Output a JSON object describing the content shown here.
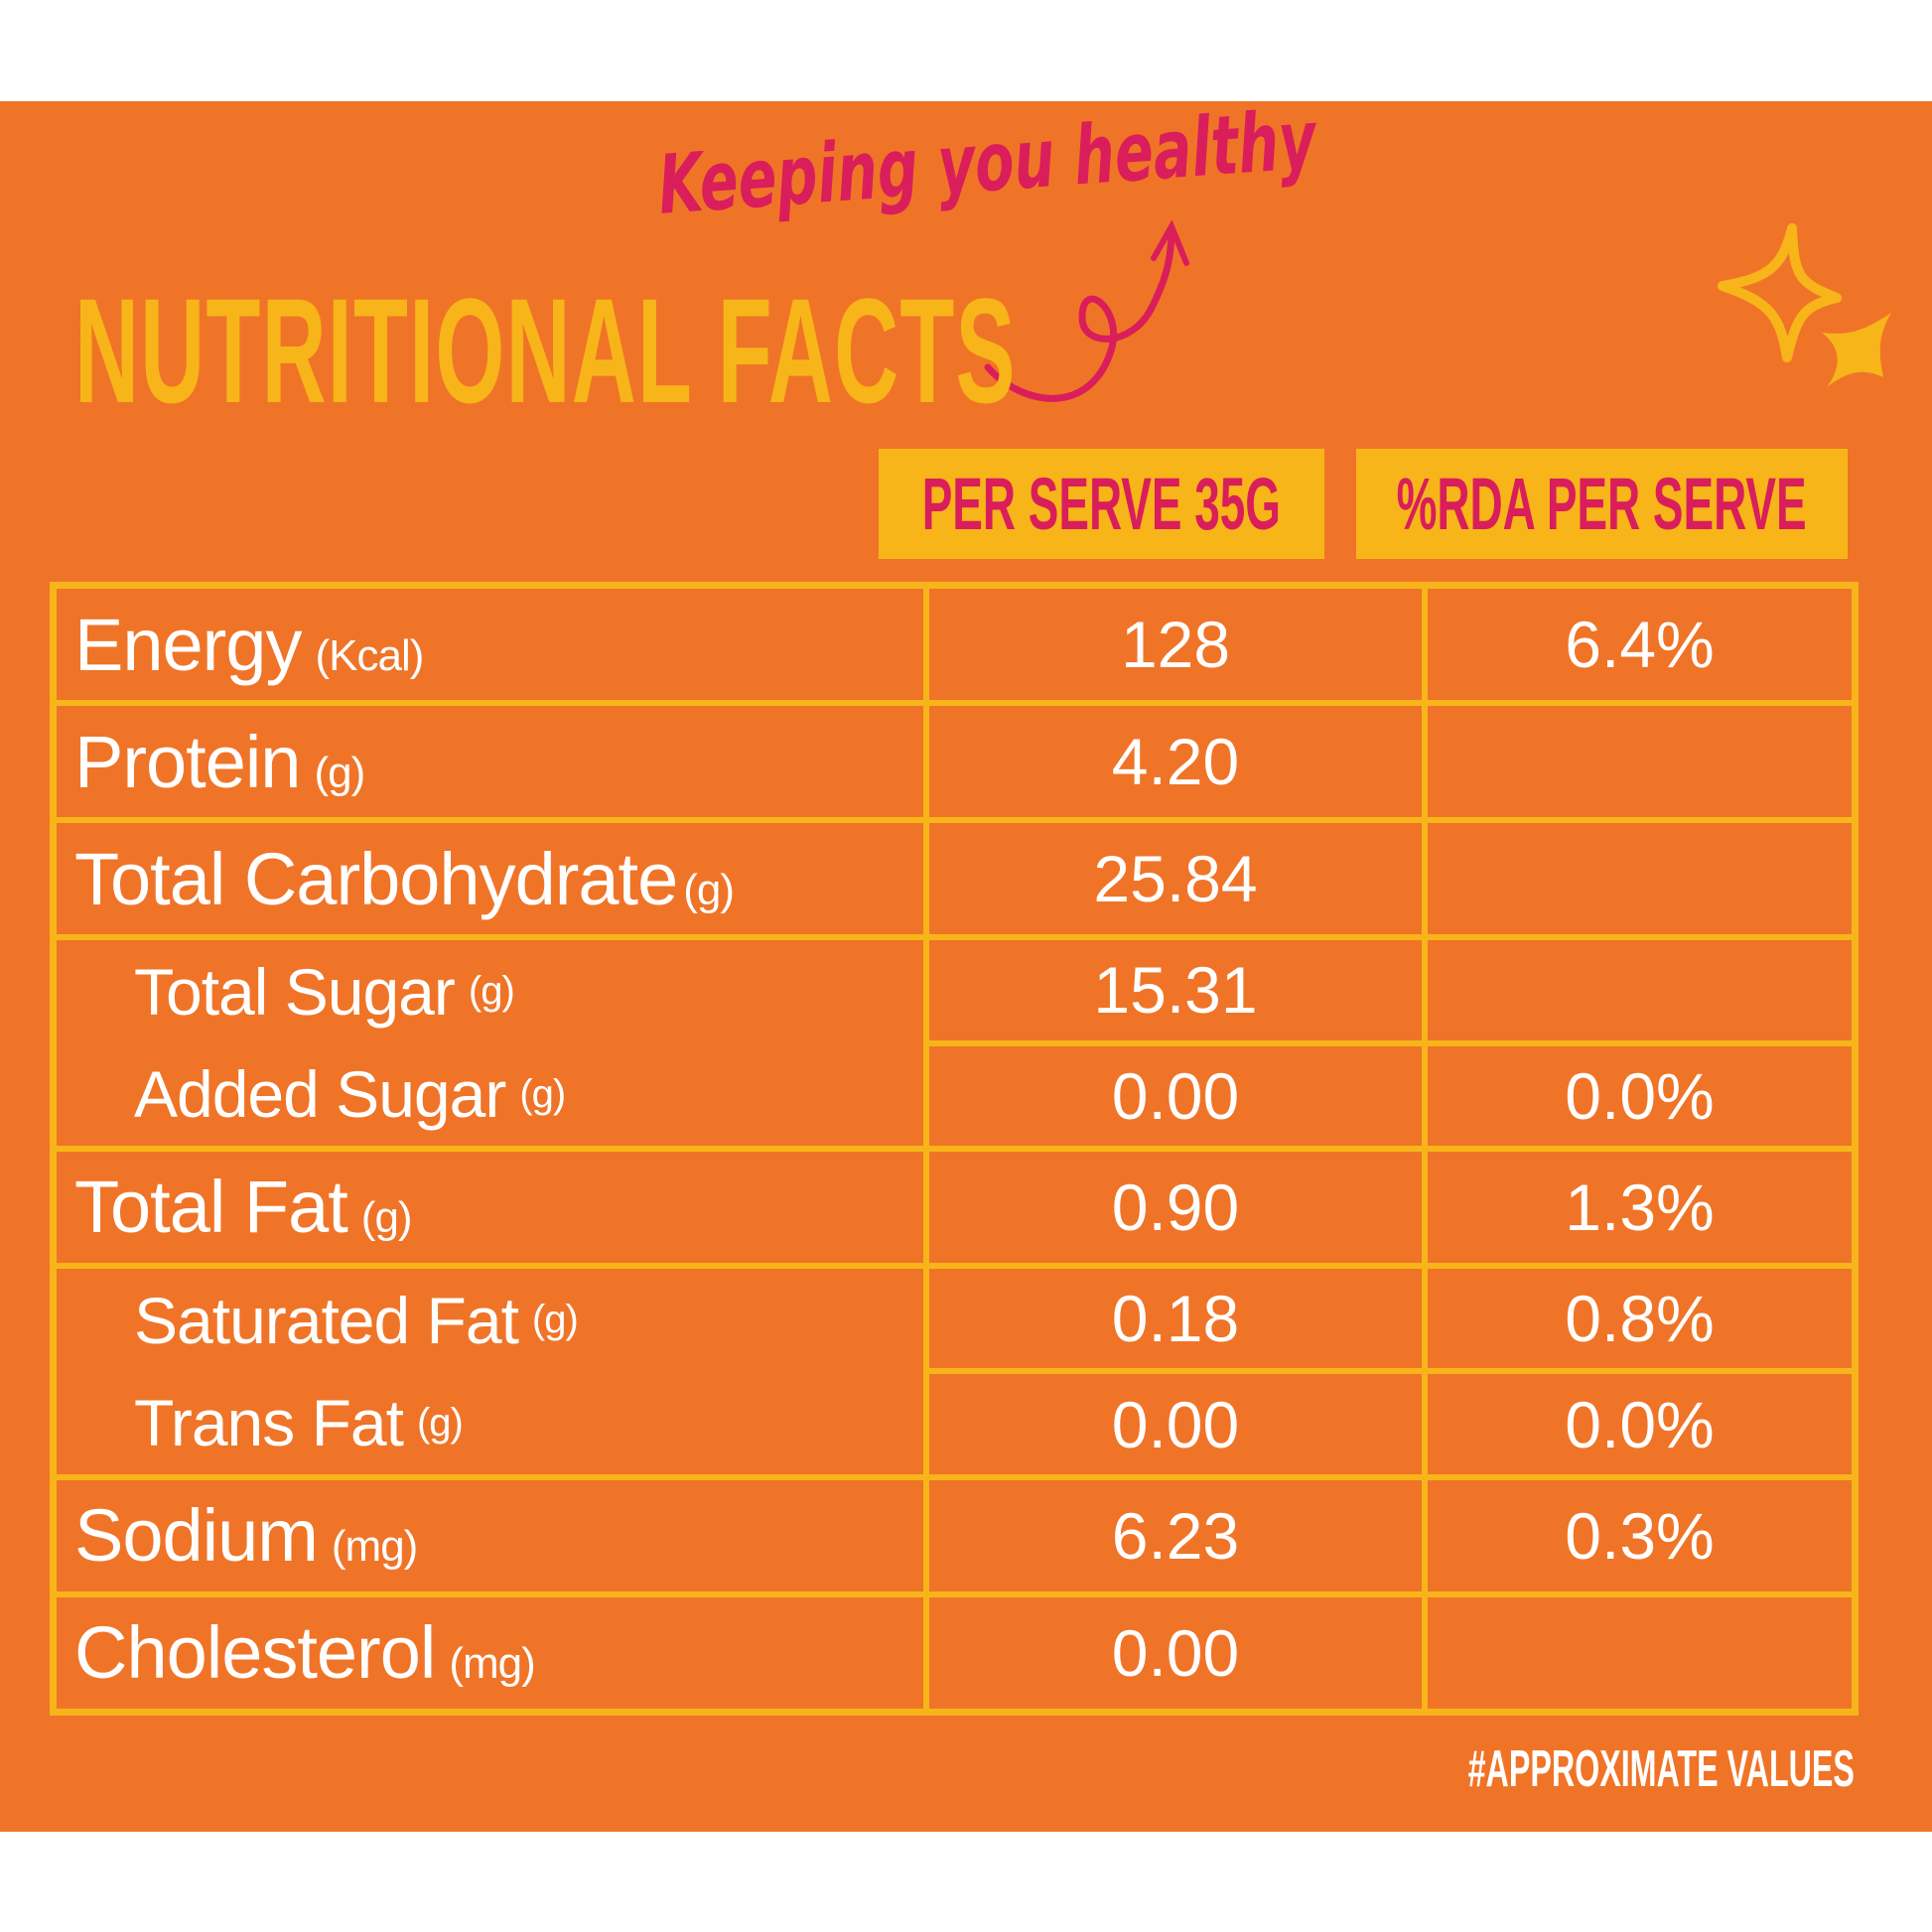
{
  "header": {
    "title": "NUTRITIONAL FACTS",
    "tagline": "Keeping you healthy",
    "columns": [
      "PER SERVE 35G",
      "%RDA PER SERVE"
    ]
  },
  "rows": [
    {
      "label": "Energy",
      "unit": "(Kcal)",
      "per_serve": "128",
      "rda": "6.4%"
    },
    {
      "label": "Protein",
      "unit": "(g)",
      "per_serve": "4.20",
      "rda": ""
    },
    {
      "label": "Total Carbohydrate",
      "unit": "(g)",
      "per_serve": "25.84",
      "rda": ""
    },
    {
      "label": "Total Sugar",
      "unit": "(g)",
      "per_serve": "15.31",
      "rda": ""
    },
    {
      "label": "Added Sugar",
      "unit": "(g)",
      "per_serve": "0.00",
      "rda": "0.0%"
    },
    {
      "label": "Total Fat",
      "unit": "(g)",
      "per_serve": "0.90",
      "rda": "1.3%"
    },
    {
      "label": "Saturated Fat",
      "unit": "(g)",
      "per_serve": "0.18",
      "rda": "0.8%"
    },
    {
      "label": "Trans Fat",
      "unit": "(g)",
      "per_serve": "0.00",
      "rda": "0.0%"
    },
    {
      "label": "Sodium",
      "unit": "(mg)",
      "per_serve": "6.23",
      "rda": "0.3%"
    },
    {
      "label": "Cholesterol",
      "unit": "(mg)",
      "per_serve": "0.00",
      "rda": ""
    }
  ],
  "footer": "#APPROXIMATE VALUES",
  "colors": {
    "background": "#F07427",
    "accent_yellow": "#F7B519",
    "accent_pink": "#D91E5B",
    "text": "#FFFFFF"
  }
}
